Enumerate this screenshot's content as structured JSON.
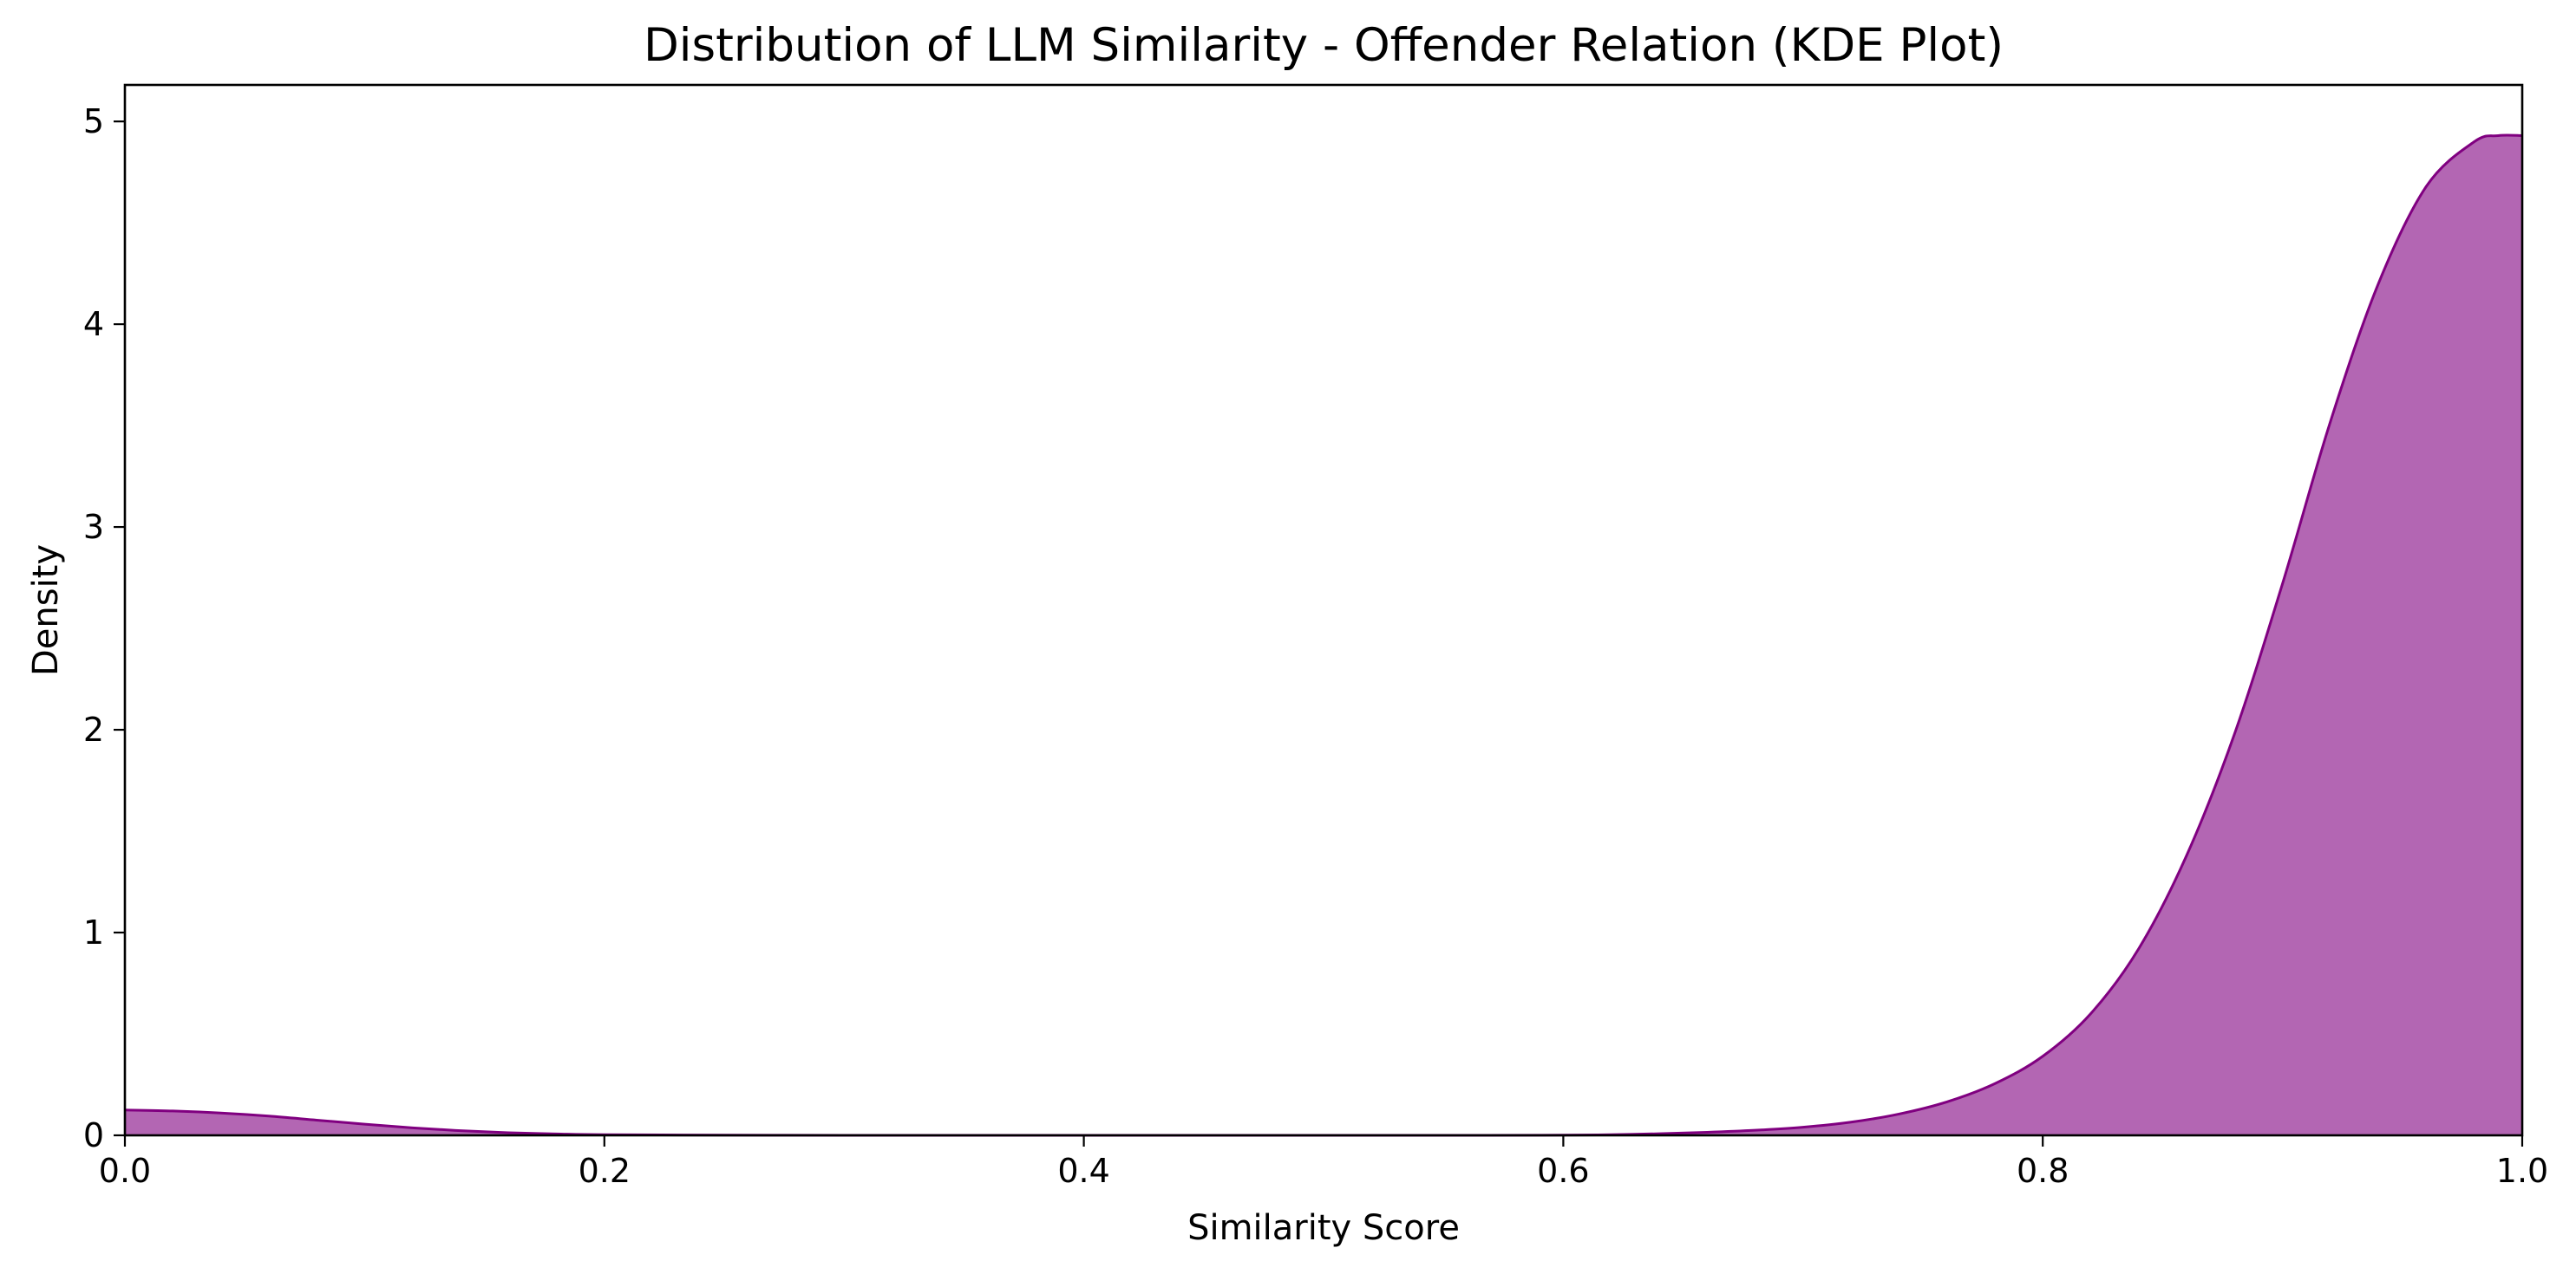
{
  "chart_data": {
    "type": "area",
    "subtype": "kde",
    "title": "Distribution of LLM Similarity - Offender Relation (KDE Plot)",
    "xlabel": "Similarity Score",
    "ylabel": "Density",
    "xlim": [
      0.0,
      1.0
    ],
    "ylim": [
      0,
      5.18
    ],
    "xticks": [
      0.0,
      0.2,
      0.4,
      0.6,
      0.8,
      1.0
    ],
    "xtick_labels": [
      "0.0",
      "0.2",
      "0.4",
      "0.6",
      "0.8",
      "1.0"
    ],
    "yticks": [
      0,
      1,
      2,
      3,
      4,
      5
    ],
    "ytick_labels": [
      "0",
      "1",
      "2",
      "3",
      "4",
      "5"
    ],
    "grid": false,
    "series": [
      {
        "name": "LLM Similarity - Offender Relation",
        "fill_color": "#800080",
        "fill_opacity": 0.6,
        "line_color": "#800080",
        "x": [
          0.0,
          0.02,
          0.04,
          0.06,
          0.08,
          0.1,
          0.12,
          0.14,
          0.16,
          0.18,
          0.2,
          0.25,
          0.3,
          0.35,
          0.4,
          0.45,
          0.5,
          0.55,
          0.6,
          0.62,
          0.64,
          0.66,
          0.68,
          0.7,
          0.72,
          0.74,
          0.76,
          0.78,
          0.8,
          0.82,
          0.84,
          0.86,
          0.88,
          0.9,
          0.92,
          0.94,
          0.96,
          0.98,
          0.99,
          1.0
        ],
        "y": [
          0.125,
          0.12,
          0.11,
          0.095,
          0.075,
          0.055,
          0.037,
          0.023,
          0.013,
          0.007,
          0.003,
          0.001,
          0.0,
          0.0,
          0.0,
          0.0,
          0.0,
          0.0,
          0.001,
          0.003,
          0.008,
          0.015,
          0.025,
          0.04,
          0.065,
          0.105,
          0.165,
          0.255,
          0.39,
          0.6,
          0.92,
          1.38,
          1.98,
          2.72,
          3.52,
          4.2,
          4.68,
          4.9,
          4.93,
          4.93
        ]
      }
    ]
  }
}
